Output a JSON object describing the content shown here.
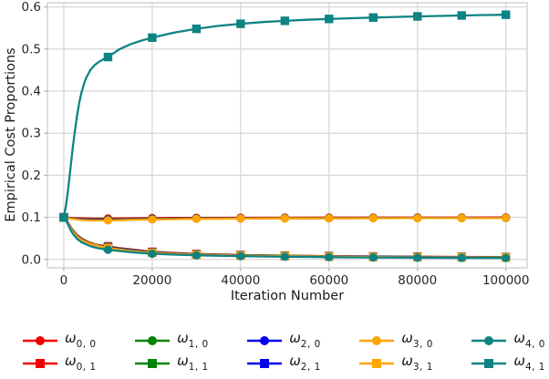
{
  "chart_data": {
    "type": "line",
    "title": "",
    "xlabel": "Iteration Number",
    "ylabel": "Empirical Cost Proportions",
    "xlim": [
      -3700,
      104800
    ],
    "ylim": [
      -0.02,
      0.61
    ],
    "xticks": [
      0,
      20000,
      40000,
      60000,
      80000,
      100000
    ],
    "yticks": [
      0.0,
      0.1,
      0.2,
      0.3,
      0.4,
      0.5,
      0.6
    ],
    "grid": true,
    "grid_color": "#d8d8d8",
    "spine_color": "#cccccc",
    "tick_label_color": "#262626",
    "legend": {
      "position": "below",
      "ncol": 5
    },
    "marker_x": [
      0,
      10000,
      20000,
      30000,
      40000,
      50000,
      60000,
      70000,
      80000,
      90000,
      100000
    ],
    "series": [
      {
        "name": "omega_0_0",
        "label": "ω",
        "sub": "0, 0",
        "color": "#f00000",
        "marker": "circle",
        "points": [
          [
            0,
            0.1
          ],
          [
            1000,
            0.0992
          ],
          [
            2000,
            0.0985
          ],
          [
            3000,
            0.0979
          ],
          [
            4000,
            0.0975
          ],
          [
            5000,
            0.0973
          ],
          [
            7000,
            0.097
          ],
          [
            10000,
            0.0972
          ],
          [
            15000,
            0.0978
          ],
          [
            20000,
            0.0983
          ],
          [
            25000,
            0.0986
          ],
          [
            30000,
            0.0988
          ],
          [
            40000,
            0.0991
          ],
          [
            50000,
            0.0993
          ],
          [
            60000,
            0.0994
          ],
          [
            70000,
            0.0995
          ],
          [
            80000,
            0.0996
          ],
          [
            90000,
            0.0996
          ],
          [
            100000,
            0.0997
          ]
        ]
      },
      {
        "name": "omega_0_1",
        "label": "ω",
        "sub": "0, 1",
        "color": "#f00000",
        "marker": "square",
        "points": [
          [
            0,
            0.1
          ],
          [
            1000,
            0.086
          ],
          [
            2000,
            0.07
          ],
          [
            3000,
            0.058
          ],
          [
            4000,
            0.05
          ],
          [
            5000,
            0.044
          ],
          [
            6000,
            0.0395
          ],
          [
            7000,
            0.036
          ],
          [
            8000,
            0.034
          ],
          [
            9000,
            0.0322
          ],
          [
            10000,
            0.031
          ],
          [
            12500,
            0.027
          ],
          [
            15000,
            0.024
          ],
          [
            20000,
            0.018
          ],
          [
            25000,
            0.0152
          ],
          [
            30000,
            0.013
          ],
          [
            40000,
            0.0105
          ],
          [
            50000,
            0.009
          ],
          [
            60000,
            0.008
          ],
          [
            70000,
            0.007
          ],
          [
            80000,
            0.0065
          ],
          [
            90000,
            0.006
          ],
          [
            100000,
            0.0055
          ]
        ]
      },
      {
        "name": "omega_1_0",
        "label": "ω",
        "sub": "1, 0",
        "color": "#048404",
        "marker": "circle",
        "points": [
          [
            0,
            0.1
          ],
          [
            1000,
            0.0988
          ],
          [
            2000,
            0.0976
          ],
          [
            3000,
            0.0966
          ],
          [
            4000,
            0.0959
          ],
          [
            5000,
            0.0955
          ],
          [
            7000,
            0.0949
          ],
          [
            10000,
            0.095
          ],
          [
            15000,
            0.0959
          ],
          [
            20000,
            0.0967
          ],
          [
            25000,
            0.0971
          ],
          [
            30000,
            0.0975
          ],
          [
            40000,
            0.098
          ],
          [
            50000,
            0.0983
          ],
          [
            60000,
            0.0985
          ],
          [
            70000,
            0.0986
          ],
          [
            80000,
            0.0988
          ],
          [
            90000,
            0.0988
          ],
          [
            100000,
            0.0989
          ]
        ]
      },
      {
        "name": "omega_1_1",
        "label": "ω",
        "sub": "1, 1",
        "color": "#048404",
        "marker": "square",
        "points": [
          [
            0,
            0.1
          ],
          [
            1000,
            0.0852
          ],
          [
            2000,
            0.069
          ],
          [
            3000,
            0.057
          ],
          [
            4000,
            0.049
          ],
          [
            5000,
            0.043
          ],
          [
            6000,
            0.0385
          ],
          [
            7000,
            0.035
          ],
          [
            8000,
            0.033
          ],
          [
            9000,
            0.0312
          ],
          [
            10000,
            0.0295
          ],
          [
            12500,
            0.0258
          ],
          [
            15000,
            0.023
          ],
          [
            20000,
            0.017
          ],
          [
            25000,
            0.0143
          ],
          [
            30000,
            0.0122
          ],
          [
            40000,
            0.0098
          ],
          [
            50000,
            0.0085
          ],
          [
            60000,
            0.0074
          ],
          [
            70000,
            0.0066
          ],
          [
            80000,
            0.006
          ],
          [
            90000,
            0.0055
          ],
          [
            100000,
            0.0051
          ]
        ]
      },
      {
        "name": "omega_2_0",
        "label": "ω",
        "sub": "2, 0",
        "color": "#0000ee",
        "marker": "circle",
        "points": [
          [
            0,
            0.1
          ],
          [
            1000,
            0.0985
          ],
          [
            2000,
            0.097
          ],
          [
            3000,
            0.0958
          ],
          [
            4000,
            0.095
          ],
          [
            5000,
            0.0944
          ],
          [
            7000,
            0.0937
          ],
          [
            10000,
            0.0939
          ],
          [
            15000,
            0.095
          ],
          [
            20000,
            0.0959
          ],
          [
            25000,
            0.0965
          ],
          [
            30000,
            0.0969
          ],
          [
            40000,
            0.0975
          ],
          [
            50000,
            0.0978
          ],
          [
            60000,
            0.098
          ],
          [
            70000,
            0.0982
          ],
          [
            80000,
            0.0983
          ],
          [
            90000,
            0.0984
          ],
          [
            100000,
            0.0984
          ]
        ]
      },
      {
        "name": "omega_2_1",
        "label": "ω",
        "sub": "2, 1",
        "color": "#0000ee",
        "marker": "square",
        "points": [
          [
            0,
            0.1
          ],
          [
            1000,
            0.0845
          ],
          [
            2000,
            0.068
          ],
          [
            3000,
            0.056
          ],
          [
            4000,
            0.048
          ],
          [
            5000,
            0.042
          ],
          [
            6000,
            0.0375
          ],
          [
            7000,
            0.0342
          ],
          [
            8000,
            0.0322
          ],
          [
            9000,
            0.0303
          ],
          [
            10000,
            0.0285
          ],
          [
            12500,
            0.0248
          ],
          [
            15000,
            0.022
          ],
          [
            20000,
            0.0163
          ],
          [
            25000,
            0.0137
          ],
          [
            30000,
            0.0117
          ],
          [
            40000,
            0.0094
          ],
          [
            50000,
            0.008
          ],
          [
            60000,
            0.007
          ],
          [
            70000,
            0.0062
          ],
          [
            80000,
            0.0056
          ],
          [
            90000,
            0.0051
          ],
          [
            100000,
            0.0047
          ]
        ]
      },
      {
        "name": "omega_3_0",
        "label": "ω",
        "sub": "3, 0",
        "color": "#ffa500",
        "marker": "circle",
        "points": [
          [
            0,
            0.1
          ],
          [
            1000,
            0.0982
          ],
          [
            2000,
            0.0963
          ],
          [
            3000,
            0.0949
          ],
          [
            4000,
            0.0939
          ],
          [
            5000,
            0.0933
          ],
          [
            7000,
            0.0925
          ],
          [
            10000,
            0.0928
          ],
          [
            15000,
            0.094
          ],
          [
            20000,
            0.0952
          ],
          [
            25000,
            0.0959
          ],
          [
            30000,
            0.0964
          ],
          [
            40000,
            0.0971
          ],
          [
            50000,
            0.0975
          ],
          [
            60000,
            0.0978
          ],
          [
            70000,
            0.098
          ],
          [
            80000,
            0.0981
          ],
          [
            90000,
            0.0982
          ],
          [
            100000,
            0.0982
          ]
        ]
      },
      {
        "name": "omega_3_1",
        "label": "ω",
        "sub": "3, 1",
        "color": "#ffa500",
        "marker": "square",
        "points": [
          [
            0,
            0.1
          ],
          [
            1000,
            0.084
          ],
          [
            2000,
            0.067
          ],
          [
            3000,
            0.055
          ],
          [
            4000,
            0.047
          ],
          [
            5000,
            0.0415
          ],
          [
            6000,
            0.0372
          ],
          [
            7000,
            0.0345
          ],
          [
            8000,
            0.0318
          ],
          [
            9000,
            0.0295
          ],
          [
            10000,
            0.0275
          ],
          [
            12500,
            0.0237
          ],
          [
            15000,
            0.0205
          ],
          [
            20000,
            0.0158
          ],
          [
            25000,
            0.0132
          ],
          [
            30000,
            0.0113
          ],
          [
            40000,
            0.0091
          ],
          [
            50000,
            0.0077
          ],
          [
            60000,
            0.0066
          ],
          [
            70000,
            0.0058
          ],
          [
            80000,
            0.0052
          ],
          [
            90000,
            0.0047
          ],
          [
            100000,
            0.0043
          ]
        ]
      },
      {
        "name": "omega_4_0",
        "label": "ω",
        "sub": "4, 0",
        "color": "#0e8383",
        "marker": "circle",
        "points": [
          [
            0,
            0.1
          ],
          [
            500,
            0.092
          ],
          [
            1000,
            0.082
          ],
          [
            1500,
            0.071
          ],
          [
            2000,
            0.062
          ],
          [
            2500,
            0.055
          ],
          [
            3000,
            0.049
          ],
          [
            4000,
            0.041
          ],
          [
            5000,
            0.036
          ],
          [
            6000,
            0.0315
          ],
          [
            7000,
            0.0285
          ],
          [
            8000,
            0.0263
          ],
          [
            9000,
            0.0245
          ],
          [
            10000,
            0.023
          ],
          [
            12500,
            0.02
          ],
          [
            15000,
            0.0175
          ],
          [
            17500,
            0.0153
          ],
          [
            20000,
            0.0135
          ],
          [
            25000,
            0.0113
          ],
          [
            30000,
            0.0098
          ],
          [
            35000,
            0.0087
          ],
          [
            40000,
            0.0078
          ],
          [
            45000,
            0.007
          ],
          [
            50000,
            0.0064
          ],
          [
            55000,
            0.0059
          ],
          [
            60000,
            0.0054
          ],
          [
            65000,
            0.005
          ],
          [
            70000,
            0.0047
          ],
          [
            75000,
            0.0044
          ],
          [
            80000,
            0.0042
          ],
          [
            85000,
            0.0039
          ],
          [
            90000,
            0.0037
          ],
          [
            95000,
            0.0035
          ],
          [
            100000,
            0.0034
          ]
        ]
      },
      {
        "name": "omega_4_1",
        "label": "ω",
        "sub": "4, 1",
        "color": "#0e8383",
        "marker": "square",
        "points": [
          [
            0,
            0.1
          ],
          [
            500,
            0.128
          ],
          [
            1000,
            0.168
          ],
          [
            1500,
            0.215
          ],
          [
            2000,
            0.262
          ],
          [
            2500,
            0.305
          ],
          [
            3000,
            0.342
          ],
          [
            3500,
            0.372
          ],
          [
            4000,
            0.396
          ],
          [
            4500,
            0.415
          ],
          [
            5000,
            0.43
          ],
          [
            6000,
            0.45
          ],
          [
            7000,
            0.462
          ],
          [
            8000,
            0.47
          ],
          [
            9000,
            0.476
          ],
          [
            10000,
            0.481
          ],
          [
            12500,
            0.499
          ],
          [
            15000,
            0.511
          ],
          [
            17500,
            0.52
          ],
          [
            20000,
            0.527
          ],
          [
            25000,
            0.539
          ],
          [
            30000,
            0.548
          ],
          [
            35000,
            0.555
          ],
          [
            40000,
            0.56
          ],
          [
            45000,
            0.564
          ],
          [
            50000,
            0.567
          ],
          [
            55000,
            0.5695
          ],
          [
            60000,
            0.5715
          ],
          [
            65000,
            0.5733
          ],
          [
            70000,
            0.5748
          ],
          [
            75000,
            0.5762
          ],
          [
            80000,
            0.5775
          ],
          [
            85000,
            0.5787
          ],
          [
            90000,
            0.5797
          ],
          [
            95000,
            0.5807
          ],
          [
            100000,
            0.5815
          ]
        ]
      }
    ]
  }
}
